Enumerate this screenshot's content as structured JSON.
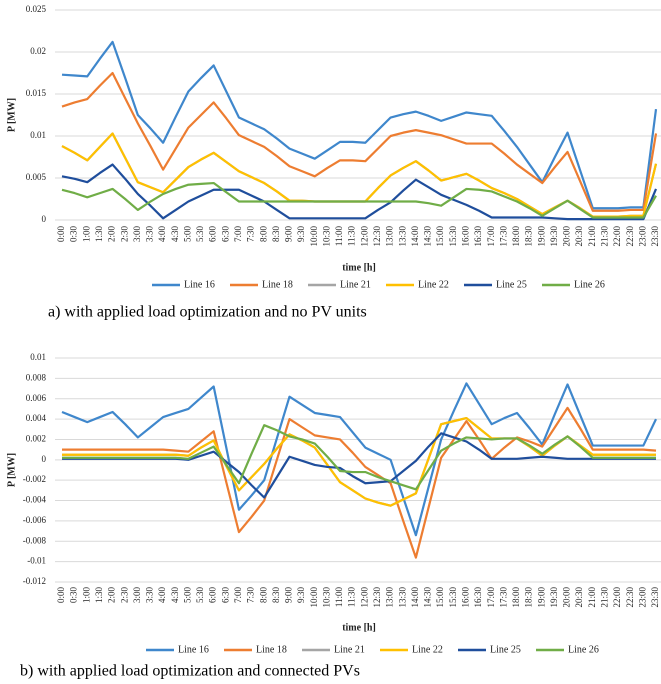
{
  "chart_data": [
    {
      "type": "line",
      "caption": "a) with applied load optimization and no PV units",
      "x_label": "time [h]",
      "y_label": "P [MW]",
      "categories": [
        "0:00",
        "0:30",
        "1:00",
        "1:30",
        "2:00",
        "2:30",
        "3:00",
        "3:30",
        "4:00",
        "4:30",
        "5:00",
        "5:30",
        "6:00",
        "6:30",
        "7:00",
        "7:30",
        "8:00",
        "8:30",
        "9:00",
        "9:30",
        "10:00",
        "10:30",
        "11:00",
        "11:30",
        "12:00",
        "12:30",
        "13:00",
        "13:30",
        "14:00",
        "14:30",
        "15:00",
        "15:30",
        "16:00",
        "16:30",
        "17:00",
        "17:30",
        "18:00",
        "18:30",
        "19:00",
        "19:30",
        "20:00",
        "20:30",
        "21:00",
        "21:30",
        "22:00",
        "22:30",
        "23:00",
        "23:30"
      ],
      "ylim": [
        0,
        0.025
      ],
      "yticks": [
        0,
        0.005,
        0.01,
        0.015,
        0.02,
        0.025
      ],
      "grid": true,
      "legend": "bottom",
      "series": [
        {
          "name": "Line 16",
          "color": "#3f87cc",
          "values": [
            0.0173,
            0.0172,
            0.0171,
            0.0192,
            0.0212,
            0.0169,
            0.0125,
            0.0109,
            0.0092,
            0.0123,
            0.0153,
            0.0169,
            0.0184,
            0.0153,
            0.0122,
            0.0115,
            0.0108,
            0.0097,
            0.0085,
            0.0079,
            0.0073,
            0.0083,
            0.0093,
            0.0093,
            0.0092,
            0.0107,
            0.0122,
            0.0126,
            0.0129,
            0.0124,
            0.0118,
            0.0123,
            0.0128,
            0.0126,
            0.0124,
            0.0106,
            0.0087,
            0.0066,
            0.0045,
            0.0075,
            0.0104,
            0.0059,
            0.0014,
            0.0014,
            0.0014,
            0.0015,
            0.0015,
            0.0132
          ]
        },
        {
          "name": "Line 18",
          "color": "#ed7d31",
          "values": [
            0.0135,
            0.014,
            0.0144,
            0.016,
            0.0175,
            0.0145,
            0.0115,
            0.0088,
            0.006,
            0.0085,
            0.011,
            0.0125,
            0.014,
            0.0121,
            0.0101,
            0.0094,
            0.0087,
            0.0076,
            0.0064,
            0.0058,
            0.0052,
            0.0062,
            0.0071,
            0.0071,
            0.007,
            0.0085,
            0.01,
            0.0104,
            0.0107,
            0.0104,
            0.0101,
            0.0096,
            0.0091,
            0.0091,
            0.0091,
            0.0079,
            0.0066,
            0.0055,
            0.0044,
            0.0063,
            0.0081,
            0.0046,
            0.0011,
            0.0011,
            0.0011,
            0.0012,
            0.0012,
            0.0103
          ]
        },
        {
          "name": "Line 21",
          "color": "#a5a5a5",
          "values": [
            0.0088,
            0.008,
            0.0071,
            0.0087,
            0.0103,
            0.0074,
            0.0045,
            0.0039,
            0.0033,
            0.0048,
            0.0063,
            0.0072,
            0.008,
            0.0069,
            0.0058,
            0.0051,
            0.0044,
            0.0034,
            0.0023,
            0.0023,
            0.0022,
            0.0022,
            0.0022,
            0.0022,
            0.0022,
            0.0038,
            0.0053,
            0.0062,
            0.007,
            0.0059,
            0.0047,
            0.0051,
            0.0055,
            0.0047,
            0.0038,
            0.0032,
            0.0025,
            0.0016,
            0.0007,
            0.0015,
            0.0023,
            0.0014,
            0.0004,
            0.0004,
            0.0004,
            0.0005,
            0.0005,
            0.0067
          ]
        },
        {
          "name": "Line 22",
          "color": "#ffc000",
          "values": [
            0.0088,
            0.008,
            0.0071,
            0.0087,
            0.0103,
            0.0074,
            0.0045,
            0.0039,
            0.0033,
            0.0048,
            0.0063,
            0.0072,
            0.008,
            0.0069,
            0.0058,
            0.0051,
            0.0044,
            0.0034,
            0.0023,
            0.0023,
            0.0022,
            0.0022,
            0.0022,
            0.0022,
            0.0022,
            0.0038,
            0.0053,
            0.0062,
            0.007,
            0.0059,
            0.0047,
            0.0051,
            0.0055,
            0.0047,
            0.0038,
            0.0032,
            0.0025,
            0.0016,
            0.0007,
            0.0015,
            0.0023,
            0.0014,
            0.0004,
            0.0004,
            0.0004,
            0.0005,
            0.0005,
            0.0067
          ]
        },
        {
          "name": "Line 25",
          "color": "#1f4e9c",
          "values": [
            0.0052,
            0.0049,
            0.0045,
            0.0056,
            0.0066,
            0.0049,
            0.0031,
            0.0017,
            0.0002,
            0.0012,
            0.0022,
            0.0029,
            0.0036,
            0.0036,
            0.0036,
            0.0029,
            0.0022,
            0.0012,
            0.0002,
            0.0002,
            0.0002,
            0.0002,
            0.0002,
            0.0002,
            0.0002,
            0.0012,
            0.0021,
            0.0035,
            0.0048,
            0.0039,
            0.003,
            0.0024,
            0.0018,
            0.0011,
            0.0003,
            0.0003,
            0.0003,
            0.0003,
            0.0003,
            0.0002,
            0.0001,
            0.0001,
            0.0001,
            0.0001,
            0.0001,
            0.0001,
            0.0001,
            0.0037
          ]
        },
        {
          "name": "Line 26",
          "color": "#70ad47",
          "values": [
            0.0036,
            0.0032,
            0.0027,
            0.0032,
            0.0037,
            0.0025,
            0.0012,
            0.0022,
            0.0031,
            0.0037,
            0.0042,
            0.0043,
            0.0044,
            0.0033,
            0.0022,
            0.0022,
            0.0022,
            0.0022,
            0.0022,
            0.0022,
            0.0022,
            0.0022,
            0.0022,
            0.0022,
            0.0022,
            0.0022,
            0.0022,
            0.0022,
            0.0022,
            0.002,
            0.0017,
            0.0027,
            0.0037,
            0.0036,
            0.0034,
            0.0028,
            0.0022,
            0.0014,
            0.0005,
            0.0014,
            0.0023,
            0.0013,
            0.0003,
            0.0003,
            0.0003,
            0.0003,
            0.0003,
            0.0029
          ]
        }
      ]
    },
    {
      "type": "line",
      "caption": "b) with applied load optimization and connected PVs",
      "x_label": "time [h]",
      "y_label": "P [MW]",
      "categories": [
        "0:00",
        "0:30",
        "1:00",
        "1:30",
        "2:00",
        "2:30",
        "3:00",
        "3:30",
        "4:00",
        "4:30",
        "5:00",
        "5:30",
        "6:00",
        "6:30",
        "7:00",
        "7:30",
        "8:00",
        "8:30",
        "9:00",
        "9:30",
        "10:00",
        "10:30",
        "11:00",
        "11:30",
        "12:00",
        "12:30",
        "13:00",
        "13:30",
        "14:00",
        "14:30",
        "15:00",
        "15:30",
        "16:00",
        "16:30",
        "17:00",
        "17:30",
        "18:00",
        "18:30",
        "19:00",
        "19:30",
        "20:00",
        "20:30",
        "21:00",
        "21:30",
        "22:00",
        "22:30",
        "23:00",
        "23:30"
      ],
      "ylim": [
        -0.012,
        0.01
      ],
      "yticks": [
        -0.012,
        -0.01,
        -0.008,
        -0.006,
        -0.004,
        -0.002,
        0,
        0.002,
        0.004,
        0.006,
        0.008,
        0.01
      ],
      "grid": true,
      "legend": "bottom",
      "series": [
        {
          "name": "Line 16",
          "color": "#3f87cc",
          "values": [
            0.0047,
            0.0042,
            0.0037,
            0.0042,
            0.0047,
            0.0035,
            0.0022,
            0.0032,
            0.0042,
            0.0046,
            0.005,
            0.0061,
            0.0072,
            0.0012,
            -0.0049,
            -0.0035,
            -0.002,
            0.0021,
            0.0062,
            0.0054,
            0.0046,
            0.0044,
            0.0042,
            0.0027,
            0.0012,
            0.0006,
            0,
            -0.0037,
            -0.0074,
            -0.0027,
            0.002,
            0.0048,
            0.0075,
            0.0055,
            0.0035,
            0.0041,
            0.0046,
            0.0031,
            0.0015,
            0.0045,
            0.0074,
            0.0044,
            0.0014,
            0.0014,
            0.0014,
            0.0014,
            0.0014,
            0.004
          ]
        },
        {
          "name": "Line 18",
          "color": "#ed7d31",
          "values": [
            0.001,
            0.001,
            0.001,
            0.001,
            0.001,
            0.001,
            0.001,
            0.001,
            0.001,
            0.0009,
            0.0008,
            0.0018,
            0.0028,
            -0.0022,
            -0.0071,
            -0.0056,
            -0.004,
            0,
            0.004,
            0.0032,
            0.0024,
            0.0022,
            0.002,
            0.0007,
            -0.0007,
            -0.0015,
            -0.0023,
            -0.006,
            -0.0096,
            -0.0047,
            0.0002,
            0.002,
            0.0038,
            0.002,
            0.0001,
            0.0012,
            0.0022,
            0.0018,
            0.0013,
            0.0032,
            0.0051,
            0.0031,
            0.001,
            0.001,
            0.001,
            0.001,
            0.001,
            0.0009
          ]
        },
        {
          "name": "Line 21",
          "color": "#a5a5a5",
          "values": [
            0.0005,
            0.0005,
            0.0005,
            0.0005,
            0.0005,
            0.0005,
            0.0005,
            0.0005,
            0.0005,
            0.0005,
            0.0004,
            0.0012,
            0.0019,
            -0.0006,
            -0.003,
            -0.0017,
            -0.0004,
            0.0011,
            0.0025,
            0.0019,
            0.0012,
            -0.0005,
            -0.0022,
            -0.003,
            -0.0038,
            -0.0042,
            -0.0045,
            -0.0039,
            -0.0033,
            0.0001,
            0.0035,
            0.0038,
            0.0041,
            0.0031,
            0.0021,
            0.0021,
            0.0021,
            0.0013,
            0.0004,
            0.0014,
            0.0023,
            0.0014,
            0.0005,
            0.0005,
            0.0005,
            0.0005,
            0.0005,
            0.0005
          ]
        },
        {
          "name": "Line 22",
          "color": "#ffc000",
          "values": [
            0.0005,
            0.0005,
            0.0005,
            0.0005,
            0.0005,
            0.0005,
            0.0005,
            0.0005,
            0.0005,
            0.0005,
            0.0004,
            0.0012,
            0.0019,
            -0.0006,
            -0.003,
            -0.0017,
            -0.0004,
            0.0011,
            0.0025,
            0.0019,
            0.0012,
            -0.0005,
            -0.0022,
            -0.003,
            -0.0038,
            -0.0042,
            -0.0045,
            -0.0039,
            -0.0033,
            0.0001,
            0.0035,
            0.0038,
            0.0041,
            0.0031,
            0.0021,
            0.0021,
            0.0021,
            0.0013,
            0.0004,
            0.0014,
            0.0023,
            0.0014,
            0.0005,
            0.0005,
            0.0005,
            0.0005,
            0.0005,
            0.0005
          ]
        },
        {
          "name": "Line 25",
          "color": "#1f4e9c",
          "values": [
            0.0001,
            0.0001,
            0.0001,
            0.0001,
            0.0001,
            0.0001,
            0.0001,
            0.0001,
            0.0001,
            0.0001,
            0,
            0.0004,
            0.0008,
            -0.0002,
            -0.0012,
            -0.0025,
            -0.0037,
            -0.0017,
            0.0003,
            -0.0001,
            -0.0005,
            -0.0007,
            -0.0008,
            -0.0016,
            -0.0023,
            -0.0022,
            -0.0021,
            -0.0011,
            -0.0001,
            0.0013,
            0.0026,
            0.0022,
            0.0018,
            0.001,
            0.0001,
            0.0001,
            0.0001,
            0.0002,
            0.0003,
            0.0002,
            0.0001,
            0.0001,
            0.0001,
            0.0001,
            0.0001,
            0.0001,
            0.0001,
            0.0001
          ]
        },
        {
          "name": "Line 26",
          "color": "#70ad47",
          "values": [
            0.0002,
            0.0002,
            0.0002,
            0.0002,
            0.0002,
            0.0002,
            0.0002,
            0.0002,
            0.0002,
            0.0002,
            0.0001,
            0.0007,
            0.0013,
            -0.0005,
            -0.0023,
            0.0006,
            0.0034,
            0.0029,
            0.0023,
            0.002,
            0.0016,
            0.0003,
            -0.0011,
            -0.0012,
            -0.0012,
            -0.0017,
            -0.0021,
            -0.0025,
            -0.0029,
            -0.001,
            0.0009,
            0.0016,
            0.0022,
            0.0021,
            0.002,
            0.0021,
            0.0021,
            0.0014,
            0.0006,
            0.0015,
            0.0023,
            0.0013,
            0.0002,
            0.0002,
            0.0002,
            0.0002,
            0.0002,
            0.0002
          ]
        }
      ]
    }
  ]
}
